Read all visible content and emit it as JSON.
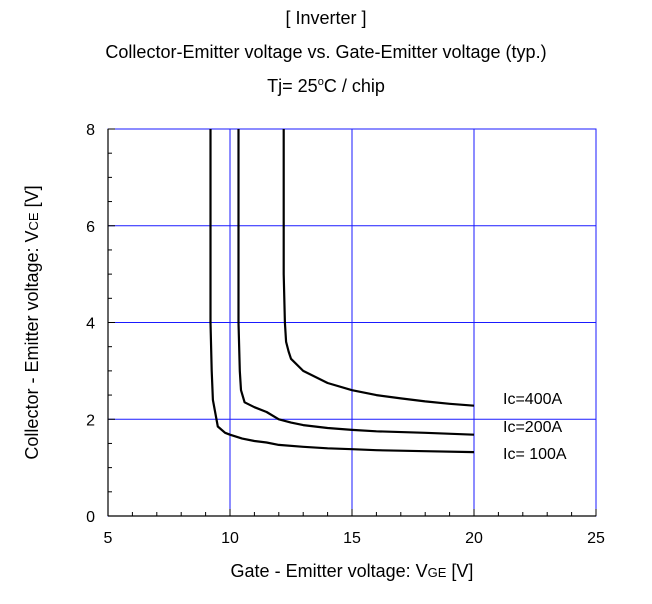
{
  "titles": {
    "line1": "[ Inverter ]",
    "line2": "Collector-Emitter voltage  vs. Gate-Emitter voltage (typ.)",
    "line3_pre": "Tj= 25",
    "line3_sup": "o",
    "line3_post": "C / chip"
  },
  "chart_data": {
    "type": "line",
    "xlabel": "Gate - Emitter voltage: VGE [V]",
    "xlabel_parts": {
      "main": "Gate - Emitter voltage: V",
      "sub": "GE",
      "unit": " [V]"
    },
    "ylabel": "Collector - Emitter voltage: VCE [V]",
    "ylabel_parts": {
      "main": "Collector - Emitter voltage: V",
      "sub": "CE",
      "unit": " [V]"
    },
    "xlim": [
      5,
      25
    ],
    "ylim": [
      0,
      8
    ],
    "xticks": [
      5,
      10,
      15,
      20,
      25
    ],
    "yticks": [
      0,
      2,
      4,
      6,
      8
    ],
    "grid": true,
    "grid_color": "#1a1aff",
    "line_color": "#000000",
    "series": [
      {
        "name": "Ic= 100A",
        "x": [
          9.2,
          9.2,
          9.25,
          9.3,
          9.5,
          9.8,
          10.0,
          10.5,
          11.0,
          11.5,
          12.0,
          13.0,
          14.0,
          15.0,
          16.0,
          18.0,
          20.0
        ],
        "y": [
          8.0,
          4.0,
          3.0,
          2.4,
          1.85,
          1.72,
          1.68,
          1.6,
          1.55,
          1.52,
          1.47,
          1.43,
          1.4,
          1.38,
          1.36,
          1.34,
          1.32
        ]
      },
      {
        "name": "Ic=200A",
        "x": [
          10.35,
          10.35,
          10.4,
          10.45,
          10.6,
          11.0,
          11.5,
          12.0,
          12.5,
          13.0,
          14.0,
          15.0,
          16.0,
          18.0,
          20.0
        ],
        "y": [
          8.0,
          4.0,
          3.0,
          2.6,
          2.35,
          2.25,
          2.15,
          2.0,
          1.93,
          1.88,
          1.82,
          1.78,
          1.75,
          1.72,
          1.68
        ]
      },
      {
        "name": "Ic=400A",
        "x": [
          12.2,
          12.2,
          12.25,
          12.3,
          12.4,
          12.5,
          13.0,
          14.0,
          15.0,
          16.0,
          17.0,
          18.0,
          19.0,
          20.0
        ],
        "y": [
          8.0,
          5.0,
          4.0,
          3.6,
          3.4,
          3.25,
          3.0,
          2.75,
          2.6,
          2.5,
          2.43,
          2.37,
          2.32,
          2.28
        ]
      }
    ],
    "series_labels": [
      "Ic=400A",
      "Ic=200A",
      "Ic= 100A"
    ]
  }
}
